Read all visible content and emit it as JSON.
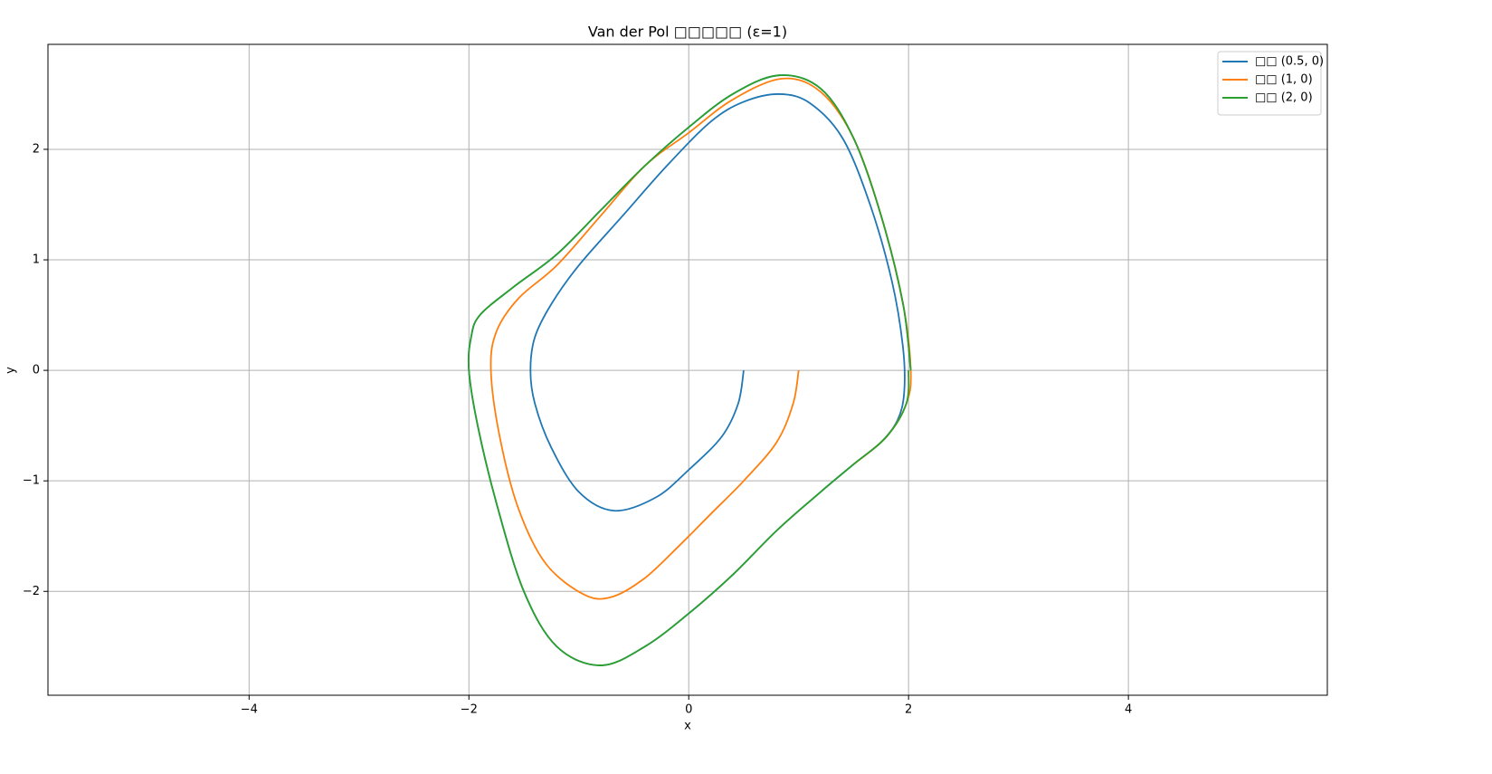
{
  "chart_data": {
    "type": "line",
    "title": "Van der Pol □□□□□ (ε=1)",
    "x_label": "x",
    "y_label": "y",
    "xlim": [
      -5.83,
      5.81
    ],
    "ylim": [
      -2.94,
      2.95
    ],
    "xticks": [
      {
        "value": -4,
        "label": "−4"
      },
      {
        "value": -2,
        "label": "−2"
      },
      0,
      2,
      4
    ],
    "yticks": [
      {
        "value": -2,
        "label": "−2"
      },
      {
        "value": -1,
        "label": "−1"
      },
      0,
      1,
      2
    ],
    "grid": true,
    "legend": "upper right",
    "series": [
      {
        "name": "□□ (0.5, 0)",
        "color": "#1f77b4",
        "x": [
          0.5,
          0.45,
          0.3,
          0,
          -0.3,
          -0.68,
          -1,
          -1.25,
          -1.4,
          -1.44,
          -1.4,
          -1.25,
          -1.0,
          -0.6,
          -0.2,
          0.2,
          0.5,
          0.82,
          1.1,
          1.4,
          1.65,
          1.85,
          1.95,
          1.96,
          1.9,
          1.75,
          1.5,
          1.2,
          0.8,
          0.4,
          0,
          -0.4,
          -0.8,
          -1.2,
          -1.5,
          -1.75,
          -1.92,
          -2.0,
          -1.98,
          -1.9,
          -1.6,
          -1.2,
          -0.8,
          -0.4,
          0,
          0.4,
          0.82,
          1.2,
          1.5,
          1.75,
          1.95,
          2.02
        ],
        "y": [
          0,
          -0.3,
          -0.6,
          -0.9,
          -1.15,
          -1.27,
          -1.1,
          -0.7,
          -0.3,
          0,
          0.3,
          0.6,
          0.95,
          1.4,
          1.85,
          2.25,
          2.43,
          2.5,
          2.42,
          2.1,
          1.5,
          0.8,
          0.2,
          -0.2,
          -0.45,
          -0.65,
          -0.85,
          -1.1,
          -1.45,
          -1.85,
          -2.2,
          -2.5,
          -2.67,
          -2.5,
          -2.0,
          -1.2,
          -0.5,
          0,
          0.3,
          0.5,
          0.75,
          1.05,
          1.45,
          1.85,
          2.2,
          2.5,
          2.67,
          2.55,
          2.1,
          1.4,
          0.6,
          0
        ]
      },
      {
        "name": "□□ (1, 0)",
        "color": "#ff7f0e",
        "x": [
          1,
          0.95,
          0.8,
          0.5,
          0.2,
          -0.1,
          -0.4,
          -0.7,
          -0.95,
          -1.3,
          -1.55,
          -1.72,
          -1.8,
          -1.75,
          -1.55,
          -1.2,
          -0.8,
          -0.4,
          0,
          0.4,
          0.85,
          1.2,
          1.5,
          1.75,
          1.95,
          2.02,
          1.98,
          1.8,
          1.5
        ],
        "y": [
          0,
          -0.3,
          -0.65,
          -1.0,
          -1.3,
          -1.6,
          -1.88,
          -2.05,
          -2.03,
          -1.75,
          -1.25,
          -0.6,
          0,
          0.35,
          0.65,
          0.95,
          1.4,
          1.85,
          2.15,
          2.45,
          2.64,
          2.52,
          2.1,
          1.4,
          0.6,
          0,
          -0.3,
          -0.6,
          -0.85
        ]
      },
      {
        "name": "□□ (2, 0)",
        "color": "#2ca02c",
        "x": [
          2,
          1.98,
          1.8,
          1.5,
          1.2,
          0.8,
          0.4,
          0,
          -0.4,
          -0.8,
          -1.2,
          -1.5,
          -1.75,
          -1.92,
          -2.0,
          -1.98,
          -1.9,
          -1.6,
          -1.2,
          -0.8,
          -0.4,
          0,
          0.4,
          0.82,
          1.2,
          1.5,
          1.75,
          1.95,
          2.02
        ],
        "y": [
          0,
          -0.3,
          -0.6,
          -0.85,
          -1.1,
          -1.45,
          -1.85,
          -2.2,
          -2.5,
          -2.67,
          -2.5,
          -2.0,
          -1.2,
          -0.5,
          0,
          0.3,
          0.5,
          0.75,
          1.05,
          1.45,
          1.85,
          2.2,
          2.5,
          2.67,
          2.55,
          2.1,
          1.4,
          0.6,
          0
        ]
      }
    ]
  }
}
